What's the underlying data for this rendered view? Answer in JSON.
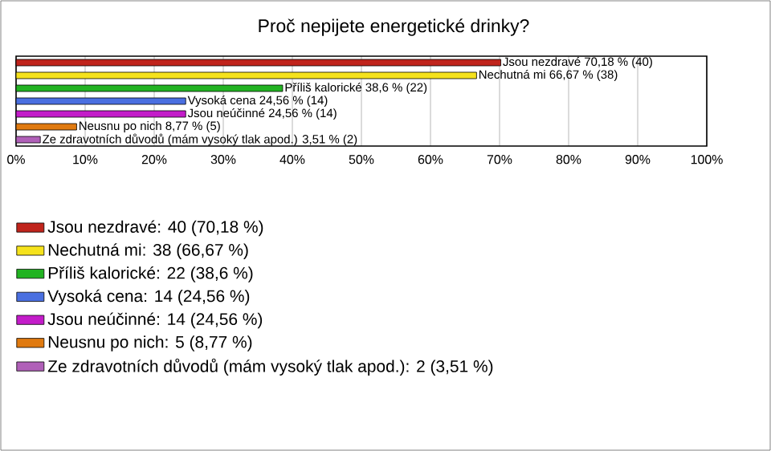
{
  "chart_data": {
    "type": "bar",
    "orientation": "horizontal",
    "title": "Proč nepijete energetické drinky?",
    "categories": [
      null
    ],
    "series": [
      {
        "name": "Jsou nezdravé: 40 (70,18 %)",
        "color": "#c0241c",
        "values": [
          70.18
        ],
        "value_labels": [
          "Jsou nezdravé 70,18 % (40)"
        ]
      },
      {
        "name": "Nechutná mi: 38 (66,67 %)",
        "color": "#f5e21c",
        "values": [
          66.67
        ],
        "value_labels": [
          "Nechutná mi 66,67 % (38)"
        ]
      },
      {
        "name": "Příliš kalorické: 22 (38,6 %)",
        "color": "#22b322",
        "values": [
          38.6
        ],
        "value_labels": [
          "Příliš kalorické 38,6 % (22)"
        ]
      },
      {
        "name": "Vysoká cena: 14 (24,56 %)",
        "color": "#4a6fe0",
        "values": [
          24.56
        ],
        "value_labels": [
          "Vysoká cena 24,56 % (14)"
        ]
      },
      {
        "name": "Jsou neúčinné: 14 (24,56 %)",
        "color": "#c31cc9",
        "values": [
          24.56
        ],
        "value_labels": [
          "Jsou neúčinné 24,56 % (14)"
        ]
      },
      {
        "name": "Neusnu po nich: 5 (8,77 %)",
        "color": "#e07a10",
        "values": [
          8.77
        ],
        "value_labels": [
          "Neusnu po nich 8,77 % (5)"
        ]
      },
      {
        "name": "Ze zdravotních důvodů (mám vysoký tlak apod.): 2 (3,51 %)",
        "color": "#b060b8",
        "values": [
          3.51
        ],
        "value_labels": [
          "Ze zdravotních důvodů (mám vysoký tlak apod.) 3,51 % (2)"
        ]
      }
    ],
    "xlim": [
      0,
      100
    ],
    "xticks": [
      {
        "value": 0,
        "label": "0%"
      },
      {
        "value": 10,
        "label": "10%"
      },
      {
        "value": 20,
        "label": "20%"
      },
      {
        "value": 30,
        "label": "30%"
      },
      {
        "value": 40,
        "label": "40%"
      },
      {
        "value": 50,
        "label": "50%"
      },
      {
        "value": 60,
        "label": "60%"
      },
      {
        "value": 70,
        "label": "70%"
      },
      {
        "value": 80,
        "label": "80%"
      },
      {
        "value": 90,
        "label": "90%"
      },
      {
        "value": 100,
        "label": "100%"
      }
    ],
    "grid": "x",
    "legend": "bottom"
  }
}
